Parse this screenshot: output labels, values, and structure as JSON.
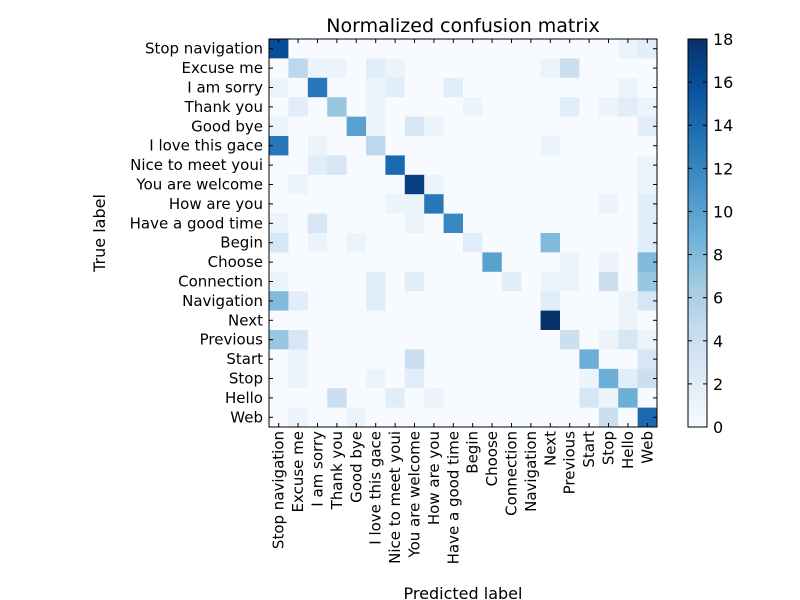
{
  "chart_data": {
    "type": "heatmap",
    "title": "Normalized confusion matrix",
    "xlabel": "Predicted label",
    "ylabel": "True label",
    "labels": [
      "Stop navigation",
      "Excuse me",
      "I am sorry",
      "Thank you",
      "Good bye",
      "I love this gace",
      "Nice to meet youi",
      "You are welcome",
      "How are you",
      "Have a good time",
      "Begin",
      "Choose",
      "Connection",
      "Navigation",
      "Next",
      "Previous",
      "Start",
      "Stop",
      "Hello",
      "Web"
    ],
    "colorbar": {
      "min": 0,
      "max": 18,
      "ticks": [
        "0",
        "2",
        "4",
        "6",
        "8",
        "10",
        "12",
        "14",
        "16",
        "18"
      ]
    },
    "colors": {
      "low": "#f7fbff",
      "high": "#08306b"
    },
    "matrix": [
      [
        16,
        0,
        0,
        0,
        0,
        0,
        0,
        0,
        0,
        0,
        0,
        0,
        0,
        0,
        0,
        0,
        0,
        0,
        1,
        2
      ],
      [
        0,
        5,
        1,
        1,
        0,
        2,
        1,
        0,
        0,
        0,
        0,
        0,
        0,
        0,
        1,
        4,
        0,
        0,
        0,
        0
      ],
      [
        1,
        0,
        13,
        0,
        0,
        1,
        2,
        0,
        0,
        2,
        0,
        0,
        0,
        0,
        0,
        0,
        0,
        0,
        1,
        0
      ],
      [
        0,
        2,
        0,
        7,
        0,
        1,
        0,
        0,
        0,
        0,
        1,
        0,
        0,
        0,
        0,
        2,
        0,
        1,
        2,
        1
      ],
      [
        1,
        0,
        0,
        0,
        10,
        1,
        0,
        3,
        1,
        0,
        0,
        0,
        0,
        0,
        0,
        0,
        0,
        0,
        0,
        2
      ],
      [
        13,
        0,
        1,
        0,
        0,
        5,
        0,
        0,
        0,
        0,
        0,
        0,
        0,
        0,
        1,
        0,
        0,
        0,
        0,
        0
      ],
      [
        0,
        0,
        2,
        3,
        0,
        0,
        14,
        0,
        0,
        0,
        0,
        0,
        0,
        0,
        0,
        0,
        0,
        0,
        0,
        1
      ],
      [
        0,
        1,
        0,
        0,
        0,
        0,
        0,
        17,
        1,
        0,
        0,
        0,
        0,
        0,
        0,
        0,
        0,
        0,
        0,
        1
      ],
      [
        0,
        0,
        0,
        0,
        0,
        0,
        1,
        1,
        13,
        0,
        0,
        0,
        0,
        0,
        0,
        0,
        0,
        1,
        0,
        2
      ],
      [
        1,
        0,
        3,
        0,
        0,
        0,
        0,
        1,
        0,
        12,
        0,
        0,
        0,
        0,
        0,
        0,
        0,
        0,
        0,
        2
      ],
      [
        3,
        0,
        1,
        0,
        1,
        0,
        0,
        0,
        0,
        0,
        2,
        0,
        0,
        0,
        8,
        0,
        0,
        0,
        0,
        2
      ],
      [
        0,
        0,
        0,
        0,
        0,
        0,
        0,
        0,
        0,
        0,
        0,
        10,
        0,
        0,
        0,
        1,
        0,
        1,
        0,
        8
      ],
      [
        1,
        0,
        0,
        0,
        0,
        2,
        0,
        2,
        0,
        0,
        0,
        0,
        2,
        0,
        1,
        1,
        0,
        4,
        0,
        7
      ],
      [
        8,
        2,
        0,
        0,
        0,
        2,
        0,
        0,
        0,
        0,
        0,
        0,
        0,
        0,
        2,
        0,
        0,
        0,
        1,
        3
      ],
      [
        0,
        0,
        0,
        0,
        0,
        0,
        0,
        0,
        0,
        0,
        0,
        0,
        0,
        0,
        18,
        0,
        0,
        0,
        1,
        0
      ],
      [
        7,
        3,
        0,
        0,
        0,
        0,
        0,
        0,
        0,
        0,
        0,
        0,
        0,
        0,
        0,
        4,
        0,
        1,
        3,
        1
      ],
      [
        0,
        1,
        0,
        0,
        0,
        0,
        0,
        4,
        0,
        0,
        0,
        0,
        0,
        0,
        0,
        0,
        9,
        0,
        0,
        3
      ],
      [
        0,
        1,
        0,
        0,
        0,
        1,
        0,
        2,
        0,
        0,
        0,
        0,
        0,
        0,
        0,
        0,
        1,
        9,
        2,
        4
      ],
      [
        0,
        0,
        0,
        4,
        0,
        0,
        2,
        0,
        1,
        0,
        0,
        0,
        0,
        0,
        0,
        0,
        3,
        1,
        9,
        0
      ],
      [
        0,
        1,
        0,
        0,
        1,
        0,
        0,
        0,
        0,
        0,
        0,
        0,
        0,
        0,
        0,
        0,
        0,
        4,
        0,
        14
      ]
    ]
  }
}
